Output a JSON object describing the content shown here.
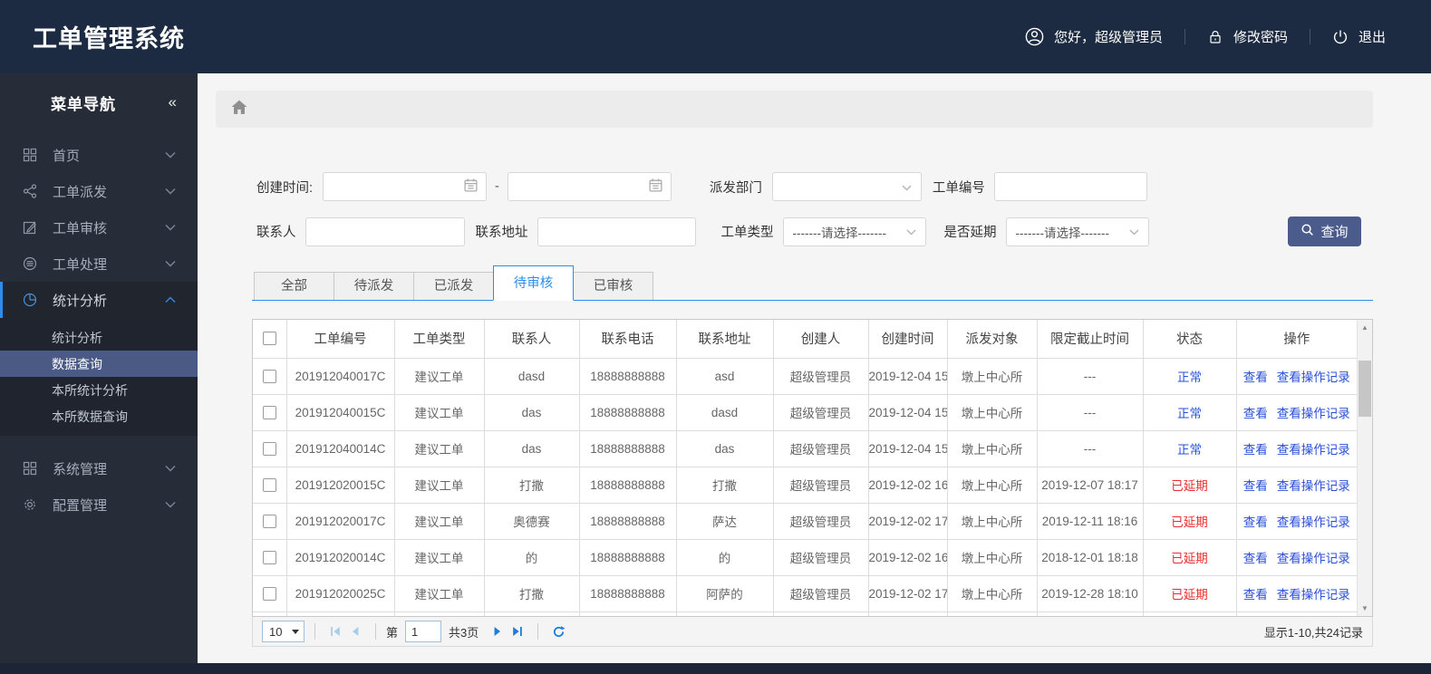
{
  "header": {
    "title": "工单管理系统",
    "greeting": "您好，超级管理员",
    "change_password": "修改密码",
    "logout": "退出"
  },
  "sidebar": {
    "nav_title": "菜单导航",
    "collapse_icon": "«",
    "items": [
      {
        "label": "首页",
        "icon": "grid-icon"
      },
      {
        "label": "工单派发",
        "icon": "share-icon"
      },
      {
        "label": "工单审核",
        "icon": "edit-icon"
      },
      {
        "label": "工单处理",
        "icon": "layers-icon"
      },
      {
        "label": "统计分析",
        "icon": "pie-chart-icon",
        "active": true,
        "expanded": true
      },
      {
        "label": "系统管理",
        "icon": "grid-icon"
      },
      {
        "label": "配置管理",
        "icon": "gear-icon"
      }
    ],
    "submenu": [
      {
        "label": "统计分析"
      },
      {
        "label": "数据查询",
        "selected": true
      },
      {
        "label": "本所统计分析"
      },
      {
        "label": "本所数据查询"
      }
    ]
  },
  "filters": {
    "created_time_label": "创建时间:",
    "date_separator": "-",
    "date_from_value": "",
    "date_to_value": "",
    "dispatch_dept_label": "派发部门",
    "dispatch_dept_value": "",
    "order_no_label": "工单编号",
    "order_no_value": "",
    "contact_label": "联系人",
    "contact_value": "",
    "address_label": "联系地址",
    "address_value": "",
    "order_type_label": "工单类型",
    "order_type_value": "-------请选择-------",
    "delay_label": "是否延期",
    "delay_value": "-------请选择-------",
    "search_button": "查询"
  },
  "tabs": [
    {
      "label": "全部"
    },
    {
      "label": "待派发"
    },
    {
      "label": "已派发"
    },
    {
      "label": "待审核",
      "active": true
    },
    {
      "label": "已审核"
    }
  ],
  "table": {
    "columns": [
      "工单编号",
      "工单类型",
      "联系人",
      "联系电话",
      "联系地址",
      "创建人",
      "创建时间",
      "派发对象",
      "限定截止时间",
      "状态",
      "操作"
    ],
    "actions": [
      "查看",
      "查看操作记录"
    ],
    "rows": [
      {
        "order_no": "201912040017C",
        "type": "建议工单",
        "contact": "dasd",
        "phone": "18888888888",
        "address": "asd",
        "creator": "超级管理员",
        "created": "2019-12-04 15",
        "target": "墩上中心所",
        "deadline": "---",
        "status": "正常",
        "delayed": false
      },
      {
        "order_no": "201912040015C",
        "type": "建议工单",
        "contact": "das",
        "phone": "18888888888",
        "address": "dasd",
        "creator": "超级管理员",
        "created": "2019-12-04 15",
        "target": "墩上中心所",
        "deadline": "---",
        "status": "正常",
        "delayed": false
      },
      {
        "order_no": "201912040014C",
        "type": "建议工单",
        "contact": "das",
        "phone": "18888888888",
        "address": "das",
        "creator": "超级管理员",
        "created": "2019-12-04 15",
        "target": "墩上中心所",
        "deadline": "---",
        "status": "正常",
        "delayed": false
      },
      {
        "order_no": "201912020015C",
        "type": "建议工单",
        "contact": "打撒",
        "phone": "18888888888",
        "address": "打撒",
        "creator": "超级管理员",
        "created": "2019-12-02 16",
        "target": "墩上中心所",
        "deadline": "2019-12-07 18:17",
        "status": "已延期",
        "delayed": true
      },
      {
        "order_no": "201912020017C",
        "type": "建议工单",
        "contact": "奥德赛",
        "phone": "18888888888",
        "address": "萨达",
        "creator": "超级管理员",
        "created": "2019-12-02 17",
        "target": "墩上中心所",
        "deadline": "2019-12-11 18:16",
        "status": "已延期",
        "delayed": true
      },
      {
        "order_no": "201912020014C",
        "type": "建议工单",
        "contact": "的",
        "phone": "18888888888",
        "address": "的",
        "creator": "超级管理员",
        "created": "2019-12-02 16",
        "target": "墩上中心所",
        "deadline": "2018-12-01 18:18",
        "status": "已延期",
        "delayed": true
      },
      {
        "order_no": "201912020025C",
        "type": "建议工单",
        "contact": "打撒",
        "phone": "18888888888",
        "address": "阿萨的",
        "creator": "超级管理员",
        "created": "2019-12-02 17",
        "target": "墩上中心所",
        "deadline": "2019-12-28 18:10",
        "status": "已延期",
        "delayed": true
      },
      {
        "order_no": "",
        "type": "",
        "contact": "",
        "phone": "",
        "address": "",
        "creator": "",
        "created": "",
        "target": "",
        "deadline": "",
        "status": "",
        "delayed": false,
        "partial": true
      }
    ]
  },
  "pagination": {
    "page_size": "10",
    "page_prefix": "第",
    "current_page": "1",
    "total_pages": "共3页",
    "summary": "显示1-10,共24记录"
  },
  "colors": {
    "header_bg": "#1c2b41",
    "sidebar_bg": "#272d38",
    "submenu_selected_bg": "#4a5a85",
    "accent_blue": "#2d8cf0",
    "search_button_bg": "#4a5b8c",
    "status_normal": "#2b50d8",
    "status_delayed": "#ea2e2e",
    "link_blue": "#2b50d8",
    "bottom_strip_bg": "#1b2537"
  }
}
